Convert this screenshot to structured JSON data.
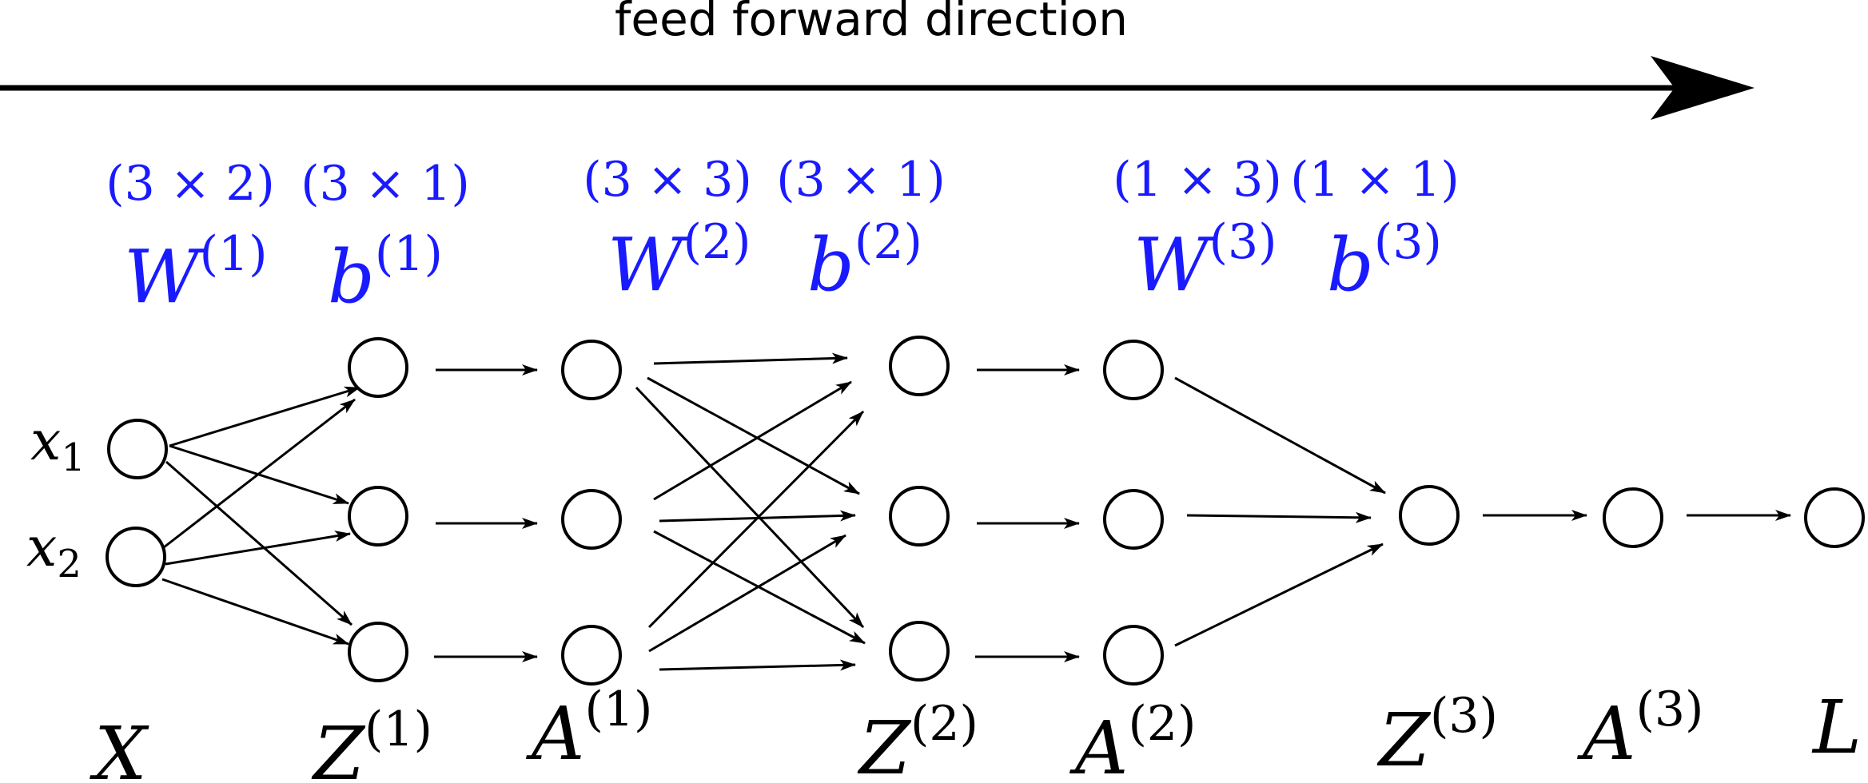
{
  "title": "feed forward direction",
  "inputs": [
    {
      "name": "x",
      "sub": "1"
    },
    {
      "name": "x",
      "sub": "2"
    }
  ],
  "params": [
    {
      "w_shape": "(3 × 2)",
      "b_shape": "(3 × 1)",
      "w_base": "W",
      "b_base": "b",
      "layer": "(1)"
    },
    {
      "w_shape": "(3 × 3)",
      "b_shape": "(3 × 1)",
      "w_base": "W",
      "b_base": "b",
      "layer": "(2)"
    },
    {
      "w_shape": "(1 × 3)",
      "b_shape": "(1 × 1)",
      "w_base": "W",
      "b_base": "b",
      "layer": "(3)"
    }
  ],
  "bottom_labels": [
    {
      "base": "X",
      "sup": ""
    },
    {
      "base": "Z",
      "sup": "(1)"
    },
    {
      "base": "A",
      "sup": "(1)"
    },
    {
      "base": "Z",
      "sup": "(2)"
    },
    {
      "base": "A",
      "sup": "(2)"
    },
    {
      "base": "Z",
      "sup": "(3)"
    },
    {
      "base": "A",
      "sup": "(3)"
    },
    {
      "base": "L",
      "sup": ""
    }
  ],
  "colors": {
    "params": "#1a1aff",
    "ink": "#000000"
  }
}
